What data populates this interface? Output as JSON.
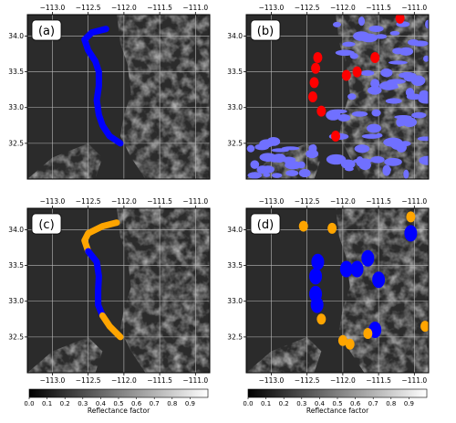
{
  "panels": [
    {
      "label": "(a)",
      "tracks": [
        {
          "color": "#0000ff",
          "points": [
            [
              -112.25,
              34.1
            ],
            [
              -112.45,
              34.05
            ],
            [
              -112.55,
              33.95
            ],
            [
              -112.5,
              33.8
            ],
            [
              -112.4,
              33.65
            ],
            [
              -112.35,
              33.5
            ],
            [
              -112.35,
              33.3
            ],
            [
              -112.38,
              33.1
            ],
            [
              -112.35,
              32.9
            ],
            [
              -112.3,
              32.75
            ],
            [
              -112.2,
              32.6
            ],
            [
              -112.05,
              32.5
            ]
          ]
        }
      ],
      "blobs": []
    },
    {
      "label": "(b)",
      "tracks": [],
      "blobs": []
    },
    {
      "label": "(c)",
      "tracks": [
        {
          "color": "#ffa500",
          "points": [
            [
              -112.1,
              34.1
            ],
            [
              -112.3,
              34.05
            ],
            [
              -112.5,
              33.95
            ],
            [
              -112.55,
              33.85
            ],
            [
              -112.5,
              33.7
            ]
          ]
        },
        {
          "color": "#0000ff",
          "points": [
            [
              -112.5,
              33.7
            ],
            [
              -112.38,
              33.55
            ],
            [
              -112.35,
              33.35
            ],
            [
              -112.36,
              33.15
            ],
            [
              -112.36,
              32.95
            ],
            [
              -112.3,
              32.8
            ]
          ]
        },
        {
          "color": "#ffa500",
          "points": [
            [
              -112.3,
              32.8
            ],
            [
              -112.2,
              32.65
            ],
            [
              -112.05,
              32.5
            ]
          ]
        }
      ],
      "blobs": []
    },
    {
      "label": "(d)",
      "tracks": [],
      "blobs": []
    }
  ],
  "x_ticks": [
    "−113.0",
    "−112.5",
    "−112.0",
    "−111.5",
    "−111.0"
  ],
  "y_ticks": [
    "34.0",
    "33.5",
    "33.0",
    "32.5"
  ],
  "colorbar": {
    "ticks": [
      "0.0",
      "0.1",
      "0.2",
      "0.3",
      "0.4",
      "0.5",
      "0.6",
      "0.7",
      "0.8",
      "0.9"
    ],
    "label": "Reflectance factor"
  },
  "colors": {
    "blue": "#0000ff",
    "orange": "#ffa500",
    "red": "#ff0000",
    "lightblue": "#7070ff"
  }
}
